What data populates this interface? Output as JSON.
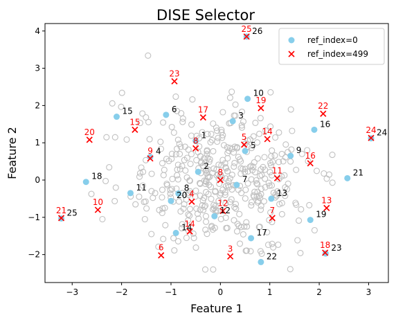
{
  "chart_data": {
    "type": "scatter",
    "title": "DISE Selector",
    "xlabel": "Feature 1",
    "ylabel": "Feature 2",
    "xlim": [
      -3.55,
      3.4
    ],
    "ylim": [
      -2.75,
      4.2
    ],
    "xticks": [
      "-3",
      "-2",
      "-1",
      "0",
      "1",
      "2",
      "3"
    ],
    "yticks": [
      "-2",
      "-1",
      "0",
      "1",
      "2",
      "3",
      "4"
    ],
    "legend_position": "top-right",
    "colors": {
      "background_points": "#c0c0c0",
      "ref0": "#87ceeb",
      "ref499": "#ff0000",
      "ref0_label": "#000000",
      "ref499_label": "#ff0000"
    },
    "series": [
      {
        "name": "ref_index=0",
        "marker": "circle",
        "points": [
          {
            "x": -0.5,
            "y": 1.05,
            "label": "1"
          },
          {
            "x": -0.45,
            "y": 0.22,
            "label": "2"
          },
          {
            "x": 0.25,
            "y": 1.58,
            "label": "3"
          },
          {
            "x": -1.42,
            "y": 0.62,
            "label": "4"
          },
          {
            "x": 0.5,
            "y": 0.78,
            "label": "5"
          },
          {
            "x": -1.1,
            "y": 1.75,
            "label": "6"
          },
          {
            "x": 0.33,
            "y": -0.13,
            "label": "7"
          },
          {
            "x": -0.85,
            "y": -0.36,
            "label": "8"
          },
          {
            "x": 1.42,
            "y": 0.65,
            "label": "9"
          },
          {
            "x": 0.55,
            "y": 2.18,
            "label": "10"
          },
          {
            "x": -1.82,
            "y": -0.35,
            "label": "11"
          },
          {
            "x": -0.12,
            "y": -0.97,
            "label": "12"
          },
          {
            "x": 1.03,
            "y": -0.5,
            "label": "13"
          },
          {
            "x": -0.9,
            "y": -1.42,
            "label": "14"
          },
          {
            "x": -2.1,
            "y": 1.7,
            "label": "15"
          },
          {
            "x": 1.9,
            "y": 1.35,
            "label": "16"
          },
          {
            "x": 0.62,
            "y": -1.56,
            "label": "17"
          },
          {
            "x": -2.72,
            "y": -0.05,
            "label": "18"
          },
          {
            "x": 1.82,
            "y": -1.07,
            "label": "19"
          },
          {
            "x": -1.0,
            "y": -0.56,
            "label": "20"
          },
          {
            "x": 2.57,
            "y": 0.05,
            "label": "21"
          },
          {
            "x": 0.82,
            "y": -2.2,
            "label": "22"
          },
          {
            "x": 2.13,
            "y": -1.97,
            "label": "23"
          },
          {
            "x": 3.05,
            "y": 1.12,
            "label": "24"
          },
          {
            "x": -3.22,
            "y": -1.03,
            "label": "25"
          },
          {
            "x": 0.53,
            "y": 3.85,
            "label": "26"
          }
        ]
      },
      {
        "name": "ref_index=499",
        "marker": "x",
        "points": [
          {
            "x": 0.2,
            "y": -2.05,
            "label": "3"
          },
          {
            "x": -0.58,
            "y": -0.58,
            "label": "4"
          },
          {
            "x": 0.48,
            "y": 0.95,
            "label": "5"
          },
          {
            "x": -1.2,
            "y": -2.02,
            "label": "6"
          },
          {
            "x": 1.05,
            "y": -1.02,
            "label": "7"
          },
          {
            "x": -0.5,
            "y": 0.85,
            "label": "8"
          },
          {
            "x": 0.0,
            "y": 0.0,
            "label": "8"
          },
          {
            "x": -1.42,
            "y": 0.58,
            "label": "9"
          },
          {
            "x": -2.48,
            "y": -0.8,
            "label": "10"
          },
          {
            "x": 1.15,
            "y": 0.05,
            "label": "11"
          },
          {
            "x": 0.05,
            "y": -0.83,
            "label": "12"
          },
          {
            "x": 2.15,
            "y": -0.75,
            "label": "13"
          },
          {
            "x": -0.62,
            "y": -1.38,
            "label": "14"
          },
          {
            "x": 0.95,
            "y": 1.1,
            "label": "14"
          },
          {
            "x": -1.73,
            "y": 1.35,
            "label": "15"
          },
          {
            "x": 1.82,
            "y": 0.45,
            "label": "16"
          },
          {
            "x": -0.35,
            "y": 1.68,
            "label": "17"
          },
          {
            "x": 2.12,
            "y": -1.95,
            "label": "18"
          },
          {
            "x": 0.82,
            "y": 1.93,
            "label": "19"
          },
          {
            "x": -2.65,
            "y": 1.08,
            "label": "20"
          },
          {
            "x": -3.22,
            "y": -1.02,
            "label": "21"
          },
          {
            "x": 2.08,
            "y": 1.78,
            "label": "22"
          },
          {
            "x": -0.93,
            "y": 2.65,
            "label": "23"
          },
          {
            "x": 3.05,
            "y": 1.13,
            "label": "24"
          },
          {
            "x": 0.53,
            "y": 3.85,
            "label": "25"
          }
        ]
      }
    ]
  }
}
